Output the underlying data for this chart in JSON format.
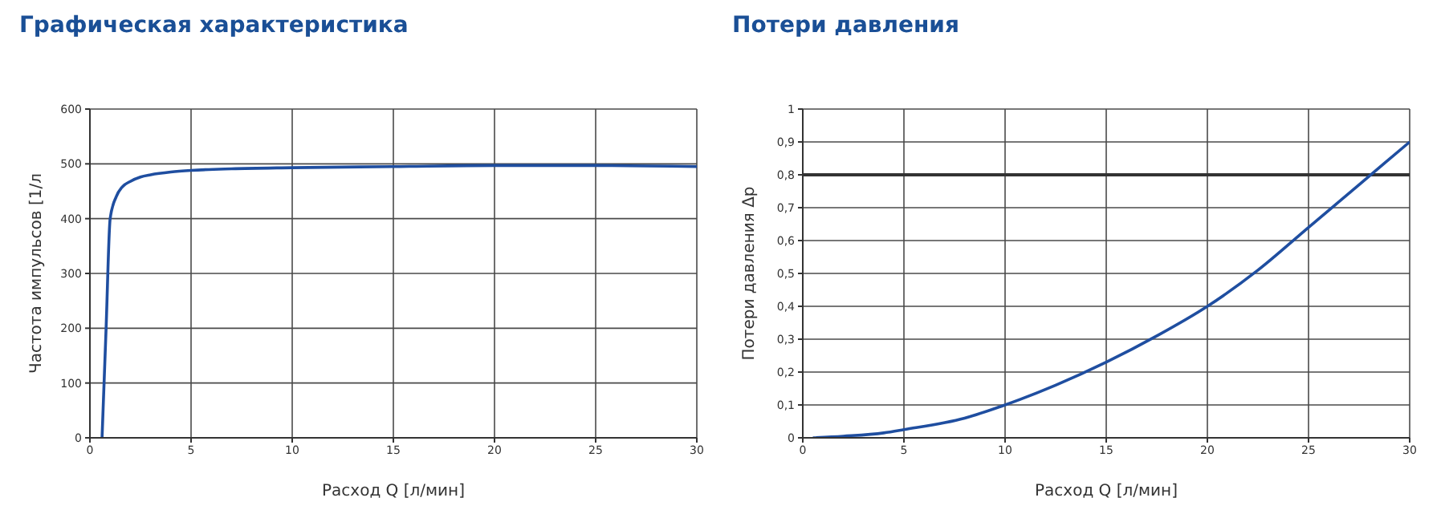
{
  "chart_data": [
    {
      "type": "line",
      "title": "Графическая характеристика",
      "xlabel": "Расход Q [л/мин]",
      "ylabel": "Частота импульсов [1/л",
      "x": [
        0.6,
        0.8,
        1.0,
        1.3,
        1.6,
        2,
        2.5,
        3,
        4,
        5,
        7,
        10,
        15,
        20,
        25,
        30
      ],
      "series": [
        {
          "color": "#1f4ea0",
          "values": [
            0,
            200,
            400,
            440,
            458,
            468,
            476,
            480,
            485,
            488,
            491,
            493,
            495,
            497,
            497,
            495
          ]
        }
      ],
      "xlim": [
        0,
        30
      ],
      "xticks": [
        0,
        5,
        10,
        15,
        20,
        25,
        30
      ],
      "ylim": [
        0,
        600
      ],
      "yticks": [
        0,
        100,
        200,
        300,
        400,
        500,
        600
      ],
      "grid": true,
      "legend": false,
      "marker": "none",
      "line_style": "solid"
    },
    {
      "type": "line",
      "title": "Потери давления",
      "xlabel": "Расход Q [л/мин]",
      "ylabel": "Потери давления Δp",
      "x": [
        0.5,
        2,
        4,
        5,
        8,
        10,
        12.5,
        15,
        17.5,
        20,
        22.5,
        25,
        27.5,
        30
      ],
      "series": [
        {
          "color": "#1f4ea0",
          "values": [
            0,
            0.005,
            0.015,
            0.025,
            0.06,
            0.1,
            0.16,
            0.23,
            0.31,
            0.4,
            0.51,
            0.64,
            0.77,
            0.9
          ]
        }
      ],
      "xlim": [
        0,
        30
      ],
      "xticks": [
        0,
        5,
        10,
        15,
        20,
        25,
        30
      ],
      "ylim": [
        0,
        1
      ],
      "yticks": [
        0,
        {
          "value": 0.1,
          "label": "0,1"
        },
        {
          "value": 0.2,
          "label": "0,2"
        },
        {
          "value": 0.3,
          "label": "0,3"
        },
        {
          "value": 0.4,
          "label": "0,4"
        },
        {
          "value": 0.5,
          "label": "0,5"
        },
        {
          "value": 0.6,
          "label": "0,6"
        },
        {
          "value": 0.7,
          "label": "0,7"
        },
        {
          "value": 0.8,
          "label": "0,8"
        },
        {
          "value": 0.9,
          "label": "0,9"
        },
        1
      ],
      "ref_lines": [
        {
          "axis": "y",
          "value": 0.8,
          "color": "#333333"
        }
      ],
      "grid": true,
      "legend": false,
      "marker": "none",
      "line_style": "solid"
    }
  ]
}
